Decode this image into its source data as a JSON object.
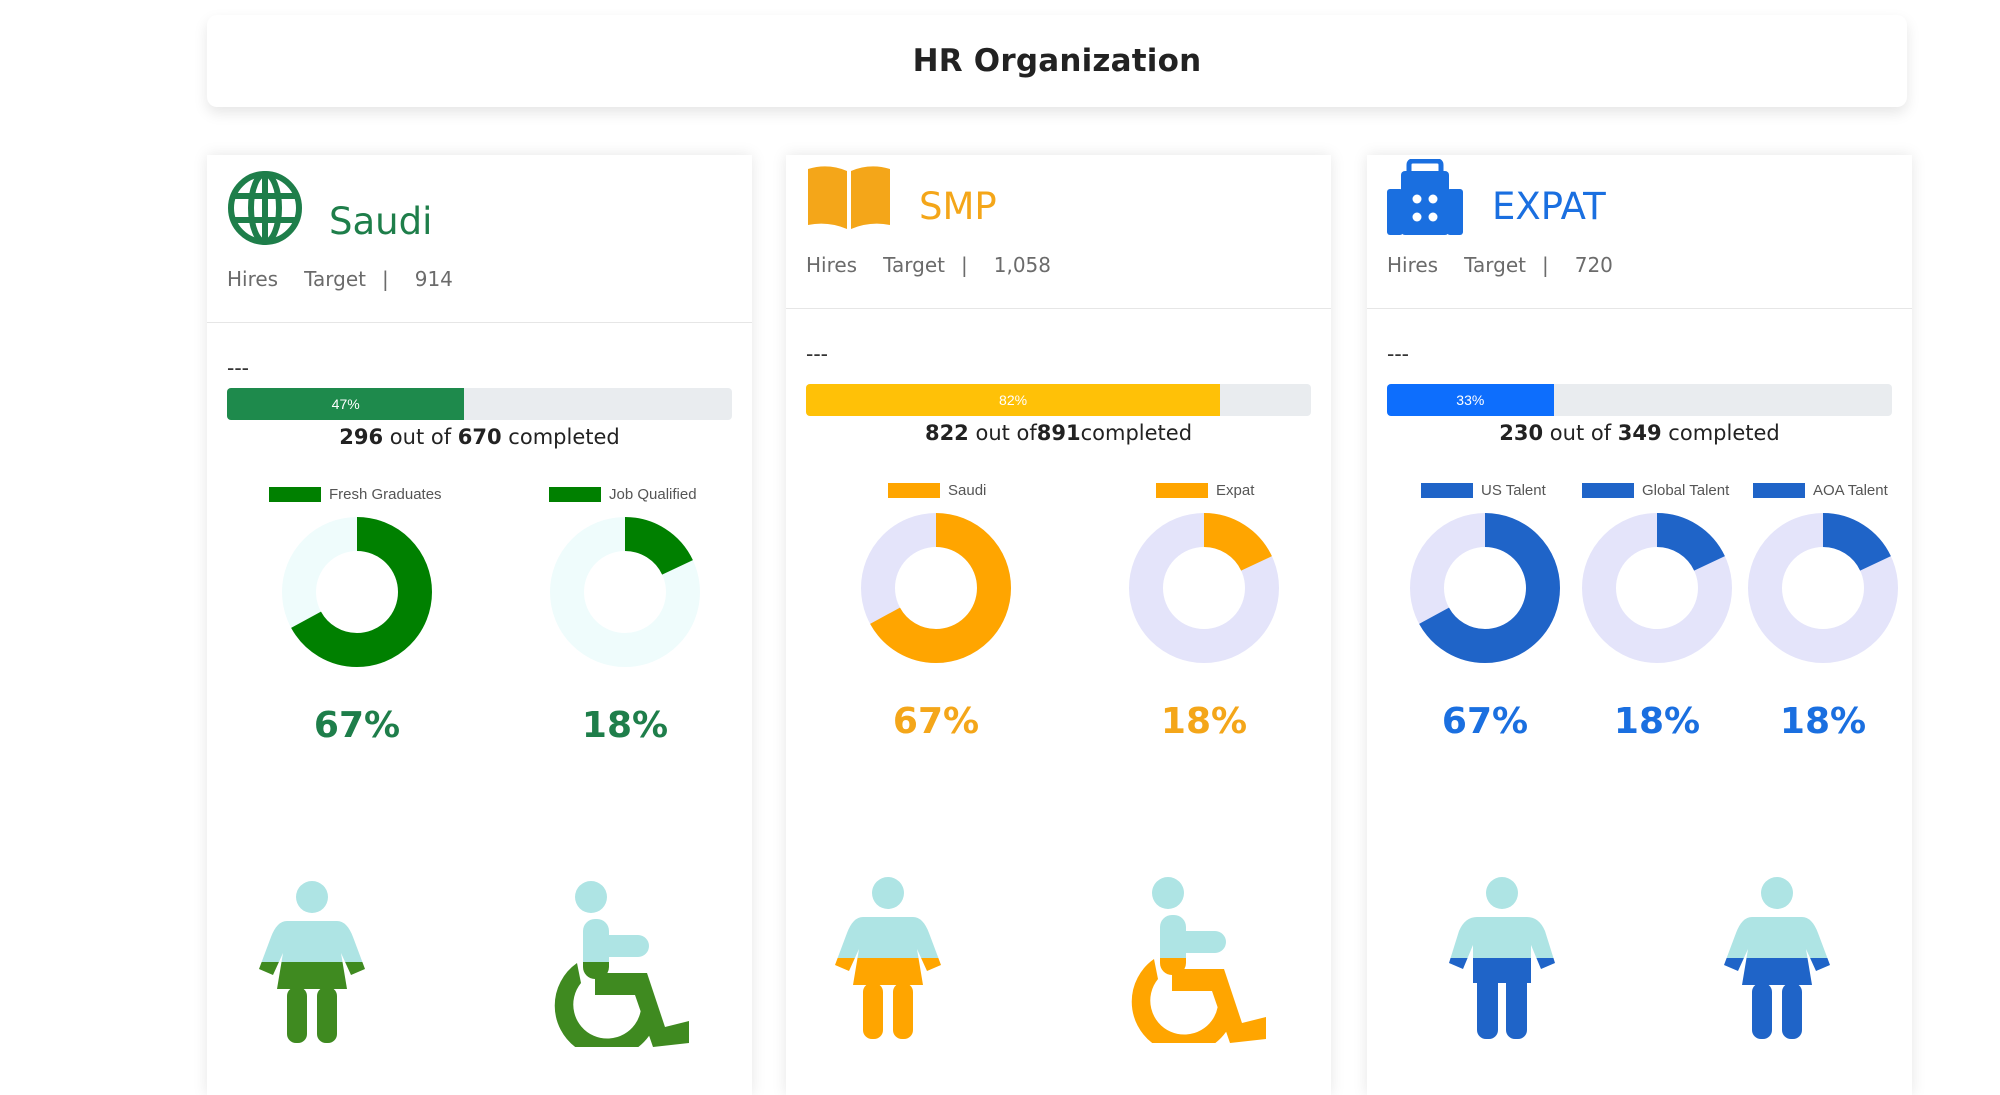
{
  "header": {
    "title": "HR Organization"
  },
  "cards": [
    {
      "name": "Saudi",
      "icon": "globe-icon",
      "color": "#1e7e4a",
      "hires_label": "Hires",
      "target_label": "Target",
      "separator": "|",
      "target_value": "914",
      "dashes": "---",
      "progress": {
        "label": "47%",
        "percent": 47,
        "color": "#1e8a4c"
      },
      "completed": {
        "done": "296",
        "mid": " out of ",
        "total": "670",
        "suffix": " completed"
      },
      "donuts": [
        {
          "legend": "Fresh Graduates",
          "value": 67,
          "pct_label": "67%",
          "fill": "#008000",
          "track": "#effcfc"
        },
        {
          "legend": "Job Qualified",
          "value": 18,
          "pct_label": "18%",
          "fill": "#008000",
          "track": "#effcfc"
        }
      ],
      "figures": [
        {
          "icon": "person-dress-icon",
          "fill": "#3f8a20",
          "top": "#aee4e4",
          "level": 0.5
        },
        {
          "icon": "wheelchair-icon",
          "fill": "#3f8a20",
          "top": "#aee4e4",
          "level": 0.5
        }
      ]
    },
    {
      "name": "SMP",
      "icon": "book-icon",
      "color": "#f4a619",
      "hires_label": "Hires",
      "target_label": "Target",
      "separator": "|",
      "target_value": "1,058",
      "dashes": "---",
      "progress": {
        "label": "82%",
        "percent": 82,
        "color": "#ffc107"
      },
      "completed": {
        "done": "822",
        "mid": " out of",
        "total": "891",
        "suffix": "completed"
      },
      "donuts": [
        {
          "legend": "Saudi",
          "value": 67,
          "pct_label": "67%",
          "fill": "#ffa500",
          "track": "#e4e4fa"
        },
        {
          "legend": "Expat",
          "value": 18,
          "pct_label": "18%",
          "fill": "#ffa500",
          "track": "#e4e4fa"
        }
      ],
      "figures": [
        {
          "icon": "person-dress-icon",
          "fill": "#ffa500",
          "top": "#aee4e4",
          "level": 0.5
        },
        {
          "icon": "wheelchair-icon",
          "fill": "#ffa500",
          "top": "#aee4e4",
          "level": 0.5
        }
      ]
    },
    {
      "name": "EXPAT",
      "icon": "building-icon",
      "color": "#1a6fe0",
      "hires_label": "Hires",
      "target_label": "Target",
      "separator": "|",
      "target_value": "720",
      "dashes": "---",
      "progress": {
        "label": "33%",
        "percent": 33,
        "color": "#0d6efd"
      },
      "completed": {
        "done": "230",
        "mid": " out of ",
        "total": "349",
        "suffix": " completed"
      },
      "donuts": [
        {
          "legend": "US Talent",
          "value": 67,
          "pct_label": "67%",
          "fill": "#1f64c8",
          "track": "#e4e4fa"
        },
        {
          "legend": "Global Talent",
          "value": 18,
          "pct_label": "18%",
          "fill": "#1f64c8",
          "track": "#e4e4fa"
        },
        {
          "legend": "AOA Talent",
          "value": 18,
          "pct_label": "18%",
          "fill": "#1f64c8",
          "track": "#e4e4fa"
        }
      ],
      "figures": [
        {
          "icon": "person-icon",
          "fill": "#1f64c8",
          "top": "#aee4e4",
          "level": 0.5
        },
        {
          "icon": "person-dress-icon",
          "fill": "#1f64c8",
          "top": "#aee4e4",
          "level": 0.5
        }
      ]
    }
  ]
}
